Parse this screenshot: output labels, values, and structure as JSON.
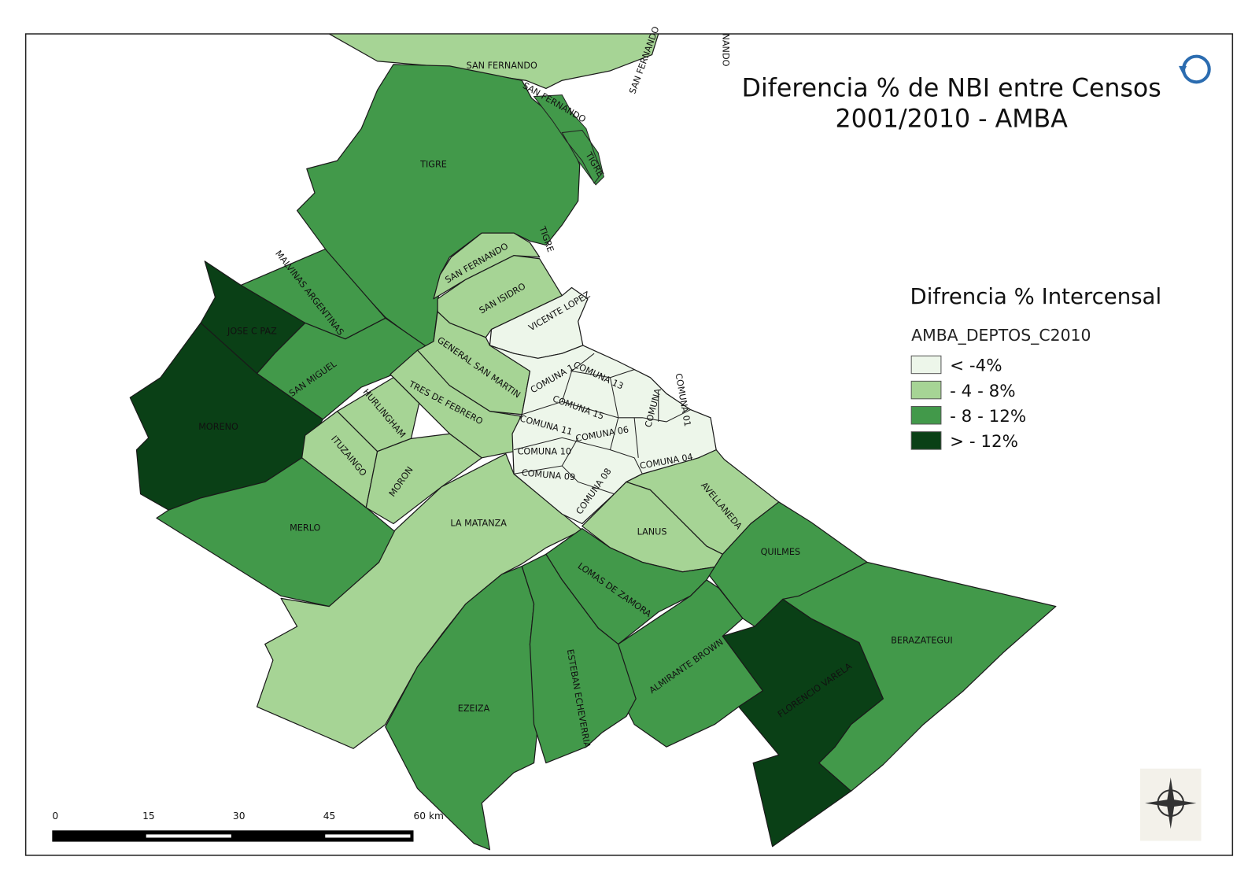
{
  "map": {
    "title_lines": [
      "Diferencia % de NBI entre Censos",
      "2001/2010 - AMBA"
    ],
    "legend": {
      "title": "Difrencia % Intercensal",
      "layer": "AMBA_DEPTOS_C2010",
      "classes": [
        {
          "label": "< -4%",
          "color": "#edf6ea"
        },
        {
          "label": "- 4 - 8%",
          "color": "#a6d495"
        },
        {
          "label": "- 8 - 12%",
          "color": "#42994a"
        },
        {
          "label": "> - 12%",
          "color": "#0a4016"
        }
      ]
    },
    "regions": [
      {
        "name": "SAN FERNANDO",
        "class": 1
      },
      {
        "name": "TIGRE",
        "class": 2
      },
      {
        "name": "SAN FERNANDO",
        "class": 1
      },
      {
        "name": "SAN ISIDRO",
        "class": 1
      },
      {
        "name": "VICENTE LOPEZ",
        "class": 0
      },
      {
        "name": "MALVINAS ARGENTINAS",
        "class": 2
      },
      {
        "name": "JOSE C PAZ",
        "class": 3
      },
      {
        "name": "SAN MIGUEL",
        "class": 2
      },
      {
        "name": "MORENO",
        "class": 3
      },
      {
        "name": "GENERAL SAN MARTIN",
        "class": 1
      },
      {
        "name": "TRES DE FEBRERO",
        "class": 1
      },
      {
        "name": "HURLINGHAM",
        "class": 1
      },
      {
        "name": "ITUZAINGO",
        "class": 1
      },
      {
        "name": "MORON",
        "class": 1
      },
      {
        "name": "MERLO",
        "class": 2
      },
      {
        "name": "LA MATANZA",
        "class": 1
      },
      {
        "name": "AVELLANEDA",
        "class": 1
      },
      {
        "name": "LANUS",
        "class": 1
      },
      {
        "name": "QUILMES",
        "class": 2
      },
      {
        "name": "LOMAS DE ZAMORA",
        "class": 2
      },
      {
        "name": "ALMIRANTE BROWN",
        "class": 2
      },
      {
        "name": "FLORENCIO VARELA",
        "class": 3
      },
      {
        "name": "BERAZATEGUI",
        "class": 2
      },
      {
        "name": "EZEIZA",
        "class": 2
      },
      {
        "name": "ESTEBAN ECHEVERRIA",
        "class": 2
      }
    ],
    "city": {
      "class": 0,
      "labels": [
        "COMUNA 1",
        "COMUNA 13",
        "COMUNA 15",
        "COMUNA 11",
        "COMUNA 06",
        "COMUNA 10",
        "COMUNA 09",
        "COMUNA 08",
        "COMUNA 04",
        "COMUNA",
        "COMUNA 01"
      ]
    },
    "island_labels": [
      "SAN FERNANDO",
      "TIGRE",
      "SAN FERNANDO",
      "NANDO",
      "TIGRE"
    ],
    "scale_bar": [
      "0",
      "15",
      "30",
      "45",
      "60 km"
    ]
  }
}
